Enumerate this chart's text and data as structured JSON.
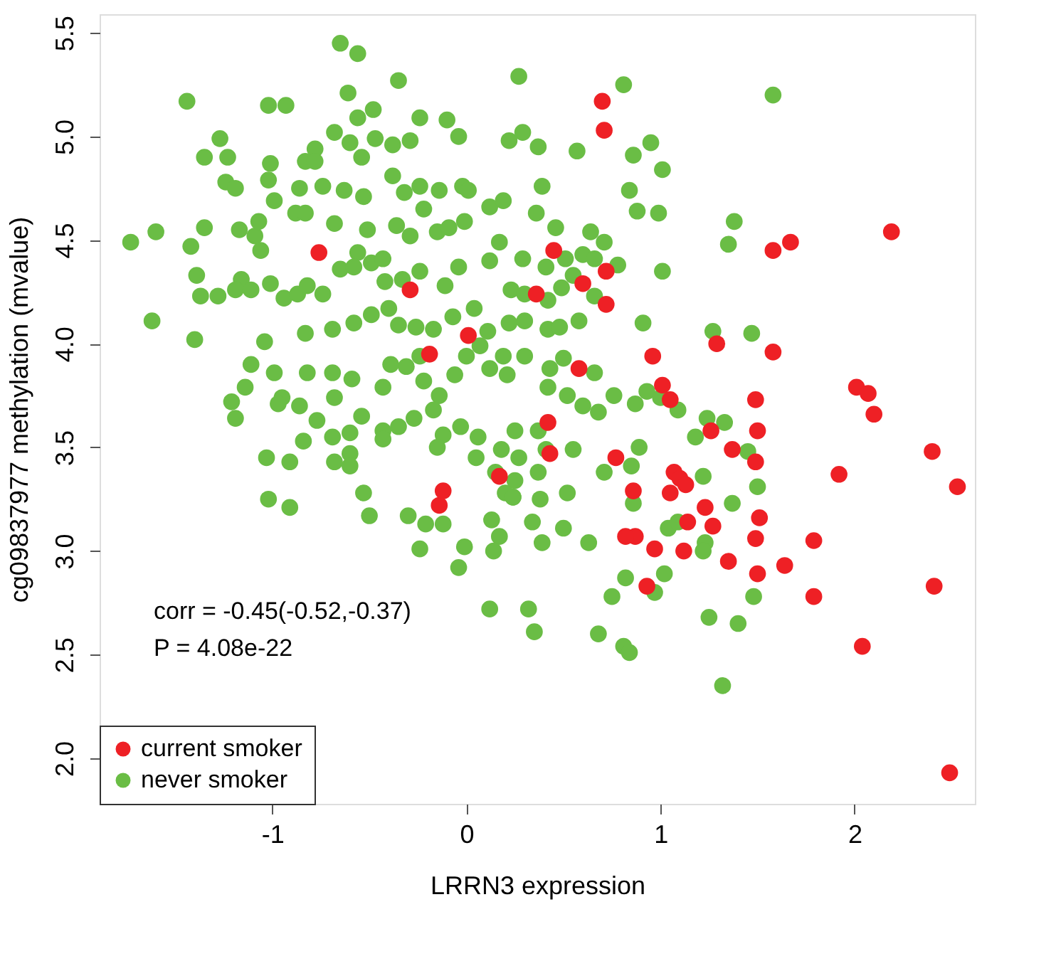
{
  "chart_data": {
    "type": "scatter",
    "xlabel": "LRRN3 expression",
    "ylabel": "cg09837977 methylation (mvalue)",
    "xlim": [
      -1.89,
      2.62
    ],
    "ylim": [
      1.78,
      5.59
    ],
    "xticks": [
      -1,
      0,
      1,
      2
    ],
    "yticks": [
      {
        "value": 2,
        "label": "2.0"
      },
      {
        "value": 2.5,
        "label": "2.5"
      },
      {
        "value": 3,
        "label": "3.0"
      },
      {
        "value": 3.5,
        "label": "3.5"
      },
      {
        "value": 4,
        "label": "4.0"
      },
      {
        "value": 4.5,
        "label": "4.5"
      },
      {
        "value": 5,
        "label": "5.0"
      },
      {
        "value": 5.5,
        "label": "5.5"
      }
    ],
    "grid": false,
    "legend": "bottom left",
    "marker": "circle",
    "annotations": [
      "corr = -0.45(-0.52,-0.37)",
      "P = 4.08e-22"
    ],
    "series": [
      {
        "name": "never smoker",
        "color": "#6abd45",
        "x": [
          -0.65,
          -0.56,
          -1.44,
          -1.02,
          -0.93,
          -0.35,
          -0.61,
          -0.48,
          0.27,
          0.81,
          1.58,
          -0.56,
          -0.24,
          -0.1,
          -1.27,
          -1.23,
          -1.35,
          -1.01,
          -0.68,
          -0.6,
          -0.47,
          -0.78,
          -0.83,
          -0.78,
          -0.54,
          -0.38,
          -0.29,
          -0.04,
          0.22,
          0.37,
          0.57,
          0.86,
          0.95,
          0.29,
          -1.24,
          -1.19,
          -1.02,
          -0.86,
          -0.74,
          -0.63,
          -0.53,
          -0.38,
          -0.32,
          -0.24,
          -0.14,
          -0.02,
          0.01,
          0.39,
          0.36,
          0.88,
          1.01,
          0.84,
          -1.6,
          -1.35,
          -1.42,
          -1.73,
          -1.39,
          -1.17,
          -1.09,
          -1.07,
          -0.99,
          -0.88,
          -0.83,
          -0.68,
          -0.51,
          -0.36,
          -0.29,
          -0.22,
          -0.15,
          -0.09,
          -0.01,
          0.12,
          0.19,
          0.46,
          0.64,
          0.71,
          0.99,
          1.38,
          1.35,
          1.01,
          -1.06,
          -1.16,
          -1.19,
          -1.11,
          -1.01,
          -0.94,
          -0.87,
          -0.82,
          -0.74,
          -0.65,
          -0.56,
          -0.58,
          -0.49,
          -0.43,
          -0.42,
          -0.33,
          -0.24,
          -0.11,
          -0.04,
          0.12,
          0.17,
          0.29,
          0.41,
          0.51,
          0.6,
          0.66,
          0.78,
          0.55,
          0.23,
          0.3,
          0.42,
          0.49,
          0.66,
          0.91,
          1.27,
          1.47,
          -1.37,
          -1.28,
          -1.62,
          -1.4,
          -1.04,
          -0.83,
          -0.69,
          -0.58,
          -0.49,
          -0.4,
          -0.35,
          -0.26,
          -0.17,
          -0.07,
          0.04,
          0.11,
          0.22,
          0.3,
          0.42,
          0.48,
          0.58,
          -1.11,
          -1.14,
          -0.99,
          -0.95,
          -0.97,
          -1.19,
          -1.21,
          -0.82,
          -0.86,
          -0.69,
          -0.59,
          -0.68,
          -0.54,
          -0.43,
          -0.39,
          -0.31,
          -0.24,
          -0.22,
          -0.14,
          -0.06,
          0.0,
          0.07,
          0.12,
          0.19,
          0.21,
          0.3,
          0.43,
          0.5,
          0.42,
          0.52,
          0.6,
          0.66,
          0.76,
          0.68,
          0.87,
          0.93,
          1.0,
          1.09,
          1.24,
          1.18,
          0.89,
          0.85,
          0.71,
          0.55,
          0.41,
          0.37,
          0.25,
          0.27,
          0.18,
          0.06,
          -0.03,
          -0.12,
          -0.17,
          -0.27,
          -0.35,
          -0.43,
          -0.43,
          -0.6,
          -0.69,
          -0.77,
          -0.84,
          -1.03,
          -0.91,
          -0.68,
          -0.6,
          -0.15,
          0.05,
          0.15,
          0.25,
          0.37,
          0.38,
          0.24,
          0.2,
          0.34,
          0.39,
          0.5,
          0.52,
          0.86,
          0.63,
          1.04,
          1.09,
          1.23,
          1.37,
          1.45,
          1.5,
          1.33,
          1.22,
          0.82,
          1.02,
          1.22,
          0.97,
          0.75,
          0.32,
          0.12,
          0.35,
          0.68,
          0.81,
          0.84,
          1.25,
          1.4,
          1.48,
          1.32,
          -1.02,
          -0.91,
          -0.5,
          -0.3,
          -0.24,
          -0.21,
          -0.04,
          -0.01,
          -0.12,
          0.13,
          0.17,
          0.24,
          0.14,
          -0.6,
          -0.53
        ],
        "values": [
          5.45,
          5.4,
          5.17,
          5.15,
          5.15,
          5.27,
          5.21,
          5.13,
          5.29,
          5.25,
          5.2,
          5.09,
          5.09,
          5.08,
          4.99,
          4.9,
          4.9,
          4.87,
          5.02,
          4.97,
          4.99,
          4.94,
          4.88,
          4.88,
          4.9,
          4.96,
          4.98,
          5.0,
          4.98,
          4.95,
          4.93,
          4.91,
          4.97,
          5.02,
          4.78,
          4.75,
          4.79,
          4.75,
          4.76,
          4.74,
          4.71,
          4.81,
          4.73,
          4.76,
          4.74,
          4.76,
          4.74,
          4.76,
          4.63,
          4.64,
          4.84,
          4.74,
          4.54,
          4.56,
          4.47,
          4.49,
          4.33,
          4.55,
          4.52,
          4.59,
          4.69,
          4.63,
          4.63,
          4.58,
          4.55,
          4.57,
          4.52,
          4.65,
          4.54,
          4.56,
          4.59,
          4.66,
          4.69,
          4.56,
          4.54,
          4.49,
          4.63,
          4.59,
          4.48,
          4.35,
          4.45,
          4.31,
          4.26,
          4.26,
          4.29,
          4.22,
          4.24,
          4.28,
          4.24,
          4.36,
          4.44,
          4.37,
          4.39,
          4.41,
          4.3,
          4.31,
          4.35,
          4.28,
          4.37,
          4.4,
          4.49,
          4.41,
          4.37,
          4.41,
          4.43,
          4.41,
          4.38,
          4.33,
          4.26,
          4.24,
          4.21,
          4.27,
          4.23,
          4.1,
          4.06,
          4.05,
          4.23,
          4.23,
          4.11,
          4.02,
          4.01,
          4.05,
          4.07,
          4.1,
          4.14,
          4.17,
          4.09,
          4.08,
          4.07,
          4.13,
          4.17,
          4.06,
          4.1,
          4.11,
          4.07,
          4.08,
          4.11,
          3.9,
          3.79,
          3.86,
          3.74,
          3.71,
          3.64,
          3.72,
          3.86,
          3.7,
          3.86,
          3.83,
          3.74,
          3.65,
          3.79,
          3.9,
          3.89,
          3.94,
          3.82,
          3.75,
          3.85,
          3.94,
          3.99,
          3.88,
          3.94,
          3.85,
          3.94,
          3.88,
          3.93,
          3.79,
          3.75,
          3.7,
          3.86,
          3.75,
          3.67,
          3.71,
          3.77,
          3.74,
          3.68,
          3.64,
          3.55,
          3.5,
          3.41,
          3.38,
          3.49,
          3.49,
          3.58,
          3.58,
          3.45,
          3.49,
          3.55,
          3.6,
          3.56,
          3.68,
          3.64,
          3.6,
          3.58,
          3.54,
          3.57,
          3.55,
          3.63,
          3.53,
          3.45,
          3.43,
          3.43,
          3.47,
          3.5,
          3.45,
          3.38,
          3.34,
          3.38,
          3.25,
          3.26,
          3.28,
          3.14,
          3.04,
          3.11,
          3.28,
          3.23,
          3.04,
          3.11,
          3.14,
          3.04,
          3.23,
          3.48,
          3.31,
          3.62,
          3.36,
          2.87,
          2.89,
          3.0,
          2.8,
          2.78,
          2.72,
          2.72,
          2.61,
          2.6,
          2.54,
          2.51,
          2.68,
          2.65,
          2.78,
          2.35,
          3.25,
          3.21,
          3.17,
          3.17,
          3.01,
          3.13,
          2.92,
          3.02,
          3.13,
          3.15,
          3.07,
          3.26,
          3.0,
          3.41,
          3.28
        ]
      },
      {
        "name": "current smoker",
        "color": "#ee2025",
        "x": [
          0.7,
          0.71,
          -0.76,
          1.58,
          2.19,
          1.67,
          0.45,
          0.36,
          -0.29,
          -0.19,
          0.01,
          0.72,
          0.6,
          0.72,
          1.29,
          1.58,
          0.58,
          0.96,
          1.01,
          1.05,
          1.49,
          2.01,
          2.07,
          2.1,
          1.26,
          1.5,
          1.49,
          1.37,
          0.77,
          0.42,
          0.43,
          0.86,
          1.07,
          1.1,
          1.05,
          1.13,
          1.23,
          0.87,
          0.82,
          1.64,
          1.79,
          1.92,
          2.4,
          2.53,
          0.97,
          1.12,
          1.14,
          1.27,
          1.5,
          1.35,
          1.79,
          2.41,
          0.93,
          2.04,
          2.49,
          1.51,
          -0.14,
          0.17,
          -0.12,
          1.49
        ],
        "values": [
          5.17,
          5.03,
          4.44,
          4.45,
          4.54,
          4.49,
          4.45,
          4.24,
          4.26,
          3.95,
          4.04,
          4.35,
          4.29,
          4.19,
          4.0,
          3.96,
          3.88,
          3.94,
          3.8,
          3.73,
          3.73,
          3.79,
          3.76,
          3.66,
          3.58,
          3.58,
          3.43,
          3.49,
          3.45,
          3.62,
          3.47,
          3.29,
          3.38,
          3.35,
          3.28,
          3.32,
          3.21,
          3.07,
          3.07,
          2.93,
          3.05,
          3.37,
          3.48,
          3.31,
          3.01,
          3.0,
          3.14,
          3.12,
          2.89,
          2.95,
          2.78,
          2.83,
          2.83,
          2.54,
          1.93,
          3.16,
          3.22,
          3.36,
          3.29,
          3.06
        ]
      }
    ]
  }
}
